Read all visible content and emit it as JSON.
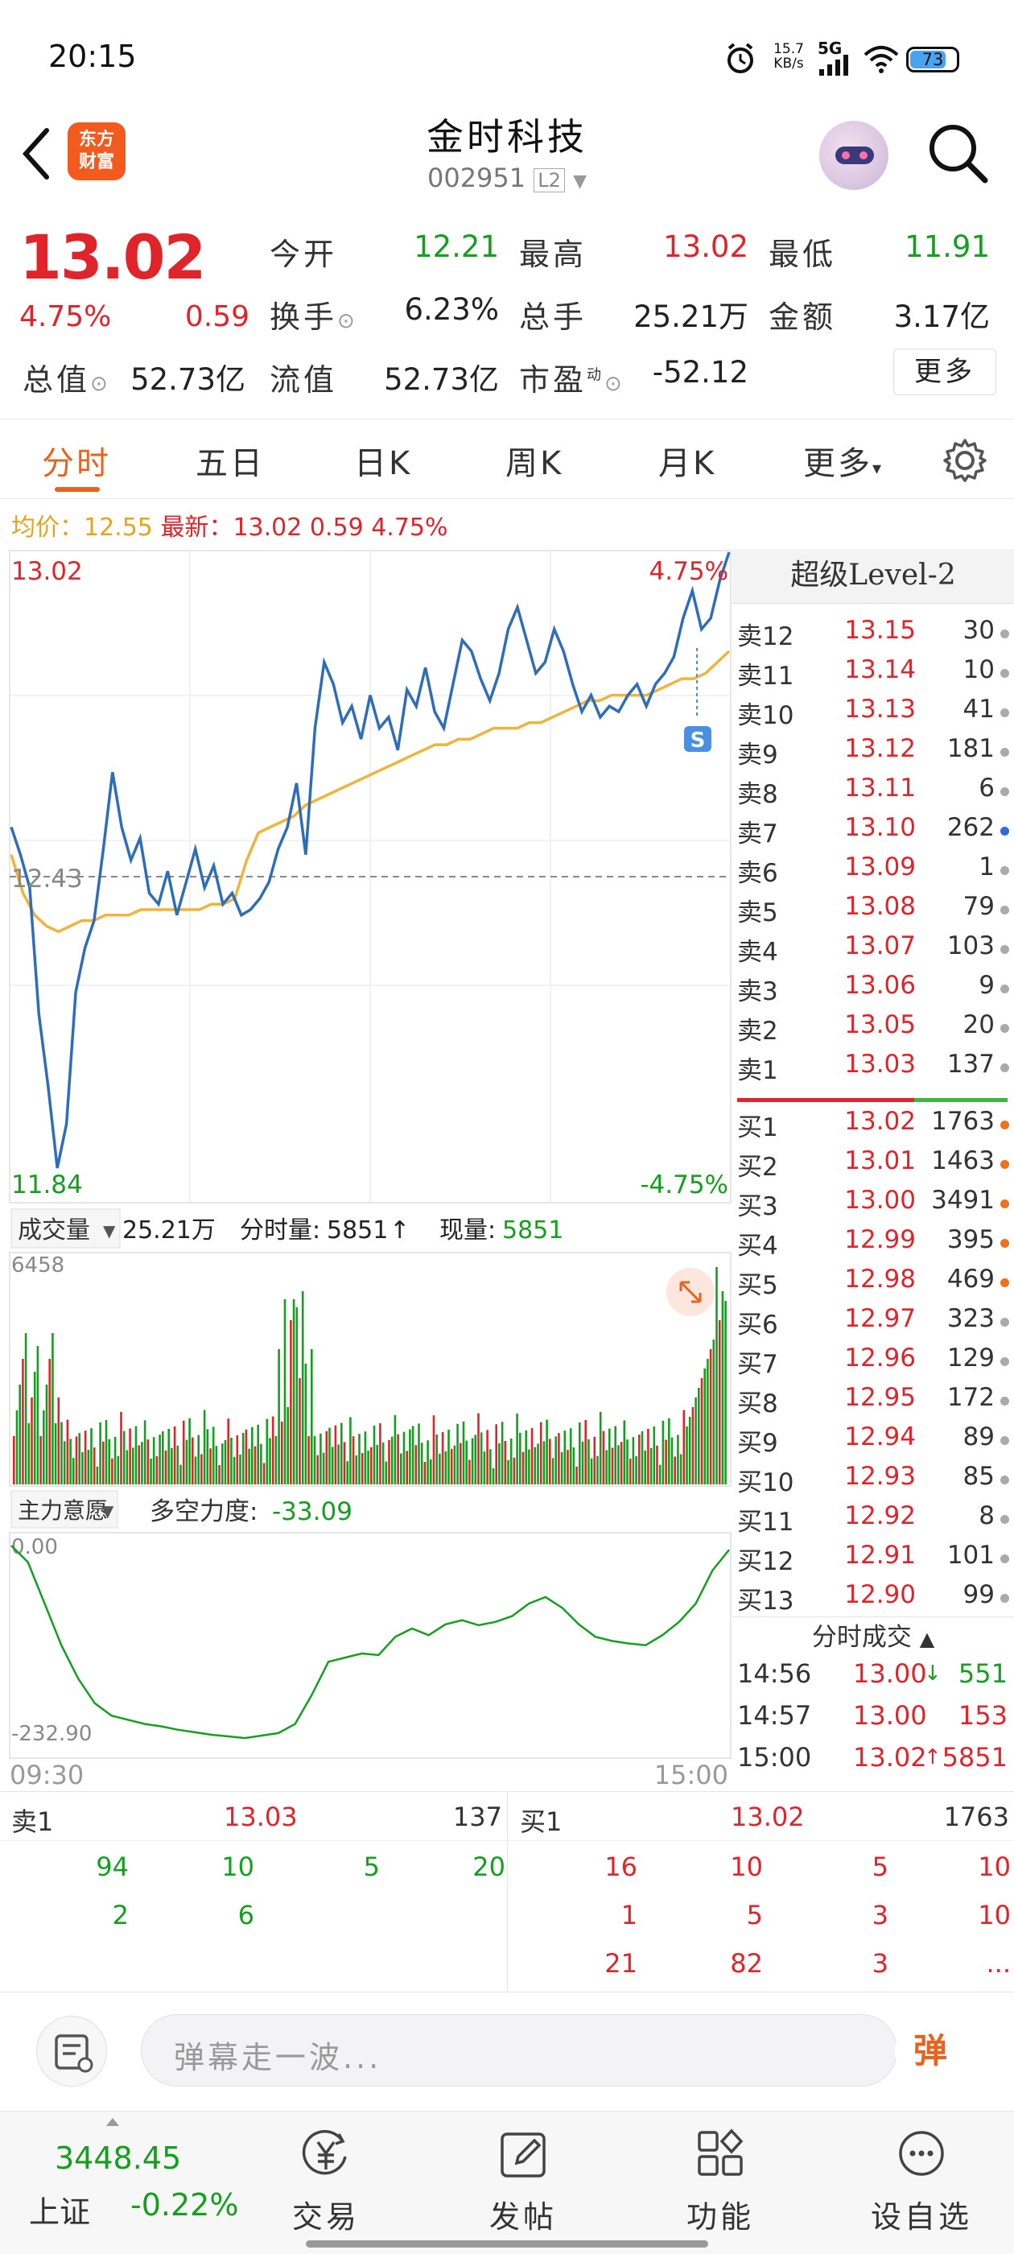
{
  "status_bar": {
    "time": "20:15",
    "net_speed": "15.7",
    "net_unit": "KB/s",
    "network": "5G",
    "battery": "73"
  },
  "header": {
    "title": "金时科技",
    "code": "002951",
    "level_tag": "L2",
    "logo_text_1": "东方",
    "logo_text_2": "财富"
  },
  "quote": {
    "price": "13.02",
    "pct": "4.75%",
    "change": "0.59",
    "open_label": "今开",
    "open": "12.21",
    "high_label": "最高",
    "high": "13.02",
    "low_label": "最低",
    "low": "11.91",
    "turnover_label": "换手",
    "turnover": "6.23%",
    "volume_label": "总手",
    "volume": "25.21万",
    "amount_label": "金额",
    "amount": "3.17亿",
    "mcap_label": "总值",
    "mcap": "52.73亿",
    "float_label": "流值",
    "float": "52.73亿",
    "pe_label": "市盈",
    "pe_sup": "动",
    "pe": "-52.12",
    "more_button": "更多"
  },
  "tabs": [
    {
      "label": "分时",
      "active": true
    },
    {
      "label": "五日"
    },
    {
      "label": "日K"
    },
    {
      "label": "周K"
    },
    {
      "label": "月K"
    },
    {
      "label": "更多"
    }
  ],
  "avg_bar": {
    "avg_label": "均价：",
    "avg": "12.55",
    "latest_label": "最新：",
    "latest": "13.02",
    "change": "0.59",
    "pct": "4.75%"
  },
  "price_chart": {
    "y_top": "13.02",
    "y_mid": "12.43",
    "y_bottom": "11.84",
    "pct_top": "4.75%",
    "pct_bottom": "-4.75%",
    "price_series": [
      12.52,
      12.47,
      12.41,
      12.18,
      12.05,
      11.9,
      11.98,
      12.22,
      12.3,
      12.35,
      12.48,
      12.62,
      12.52,
      12.46,
      12.5,
      12.4,
      12.38,
      12.44,
      12.36,
      12.42,
      12.48,
      12.41,
      12.45,
      12.38,
      12.4,
      12.36,
      12.37,
      12.39,
      12.42,
      12.48,
      12.52,
      12.6,
      12.47,
      12.7,
      12.82,
      12.78,
      12.71,
      12.74,
      12.68,
      12.76,
      12.7,
      12.72,
      12.66,
      12.77,
      12.74,
      12.81,
      12.73,
      12.7,
      12.78,
      12.86,
      12.84,
      12.79,
      12.75,
      12.8,
      12.88,
      12.92,
      12.86,
      12.8,
      12.82,
      12.88,
      12.84,
      12.78,
      12.73,
      12.76,
      12.72,
      12.74,
      12.73,
      12.76,
      12.78,
      12.74,
      12.78,
      12.8,
      12.83,
      12.9,
      12.95,
      12.88,
      12.9,
      12.97,
      13.02
    ],
    "avg_series": [
      12.47,
      12.4,
      12.36,
      12.34,
      12.33,
      12.34,
      12.35,
      12.35,
      12.36,
      12.36,
      12.36,
      12.37,
      12.37,
      12.37,
      12.37,
      12.37,
      12.37,
      12.38,
      12.38,
      12.39,
      12.46,
      12.51,
      12.52,
      12.53,
      12.54,
      12.56,
      12.57,
      12.58,
      12.59,
      12.6,
      12.61,
      12.62,
      12.63,
      12.64,
      12.65,
      12.66,
      12.67,
      12.67,
      12.68,
      12.68,
      12.69,
      12.7,
      12.7,
      12.7,
      12.71,
      12.71,
      12.72,
      12.73,
      12.74,
      12.75,
      12.75,
      12.76,
      12.76,
      12.76,
      12.76,
      12.77,
      12.78,
      12.79,
      12.79,
      12.8,
      12.82,
      12.84
    ]
  },
  "volume_bar": {
    "label": "成交量",
    "total": "25.21万",
    "minute_label": "分时量:",
    "minute": "5851",
    "now_label": "现量:",
    "now": "5851",
    "max": "6458"
  },
  "indicator_bar": {
    "label": "主力意愿",
    "name": "多空力度:",
    "value": "-33.09",
    "y_top": "0.00",
    "y_bottom": "-232.90",
    "time_start": "09:30",
    "time_end": "15:00"
  },
  "orderbook": {
    "title": "超级Level-2",
    "asks": [
      {
        "side": "卖12",
        "price": "13.15",
        "vol": "30",
        "dot": "#aaaaaa"
      },
      {
        "side": "卖11",
        "price": "13.14",
        "vol": "10",
        "dot": "#aaaaaa"
      },
      {
        "side": "卖10",
        "price": "13.13",
        "vol": "41",
        "dot": "#aaaaaa"
      },
      {
        "side": "卖9",
        "price": "13.12",
        "vol": "181",
        "dot": "#aaaaaa"
      },
      {
        "side": "卖8",
        "price": "13.11",
        "vol": "6",
        "dot": "#aaaaaa"
      },
      {
        "side": "卖7",
        "price": "13.10",
        "vol": "262",
        "dot": "#2a6fd6"
      },
      {
        "side": "卖6",
        "price": "13.09",
        "vol": "1",
        "dot": "#aaaaaa"
      },
      {
        "side": "卖5",
        "price": "13.08",
        "vol": "79",
        "dot": "#aaaaaa"
      },
      {
        "side": "卖4",
        "price": "13.07",
        "vol": "103",
        "dot": "#aaaaaa"
      },
      {
        "side": "卖3",
        "price": "13.06",
        "vol": "9",
        "dot": "#aaaaaa"
      },
      {
        "side": "卖2",
        "price": "13.05",
        "vol": "20",
        "dot": "#aaaaaa"
      },
      {
        "side": "卖1",
        "price": "13.03",
        "vol": "137",
        "dot": "#aaaaaa"
      }
    ],
    "bids": [
      {
        "side": "买1",
        "price": "13.02",
        "vol": "1763",
        "dot": "#f0701e"
      },
      {
        "side": "买2",
        "price": "13.01",
        "vol": "1463",
        "dot": "#f0701e"
      },
      {
        "side": "买3",
        "price": "13.00",
        "vol": "3491",
        "dot": "#f0701e"
      },
      {
        "side": "买4",
        "price": "12.99",
        "vol": "395",
        "dot": "#f0701e"
      },
      {
        "side": "买5",
        "price": "12.98",
        "vol": "469",
        "dot": "#f0701e"
      },
      {
        "side": "买6",
        "price": "12.97",
        "vol": "323",
        "dot": "#aaaaaa"
      },
      {
        "side": "买7",
        "price": "12.96",
        "vol": "129",
        "dot": "#aaaaaa"
      },
      {
        "side": "买8",
        "price": "12.95",
        "vol": "172",
        "dot": "#aaaaaa"
      },
      {
        "side": "买9",
        "price": "12.94",
        "vol": "89",
        "dot": "#aaaaaa"
      },
      {
        "side": "买10",
        "price": "12.93",
        "vol": "85",
        "dot": "#aaaaaa"
      },
      {
        "side": "买11",
        "price": "12.92",
        "vol": "8",
        "dot": "#aaaaaa"
      },
      {
        "side": "买12",
        "price": "12.91",
        "vol": "101",
        "dot": "#aaaaaa"
      },
      {
        "side": "买13",
        "price": "12.90",
        "vol": "99",
        "dot": "#aaaaaa"
      }
    ],
    "trades_title": "分时成交",
    "trades": [
      {
        "time": "14:56",
        "price": "13.00",
        "arrow": "↓",
        "vol": "551"
      },
      {
        "time": "14:57",
        "price": "13.00",
        "arrow": "",
        "vol": "153"
      },
      {
        "time": "15:00",
        "price": "13.02",
        "arrow": "↑",
        "vol": "5851"
      }
    ]
  },
  "tick_table": {
    "sell_label": "卖1",
    "sell_price": "13.03",
    "sell_vol": "137",
    "buy_label": "买1",
    "buy_price": "13.02",
    "buy_vol": "1763",
    "sell_rows": [
      [
        "94",
        "10",
        "5",
        "20"
      ],
      [
        "2",
        "6",
        "",
        ""
      ]
    ],
    "buy_rows": [
      [
        "16",
        "10",
        "5",
        "10"
      ],
      [
        "1",
        "5",
        "3",
        "10"
      ],
      [
        "21",
        "82",
        "3",
        "..."
      ]
    ]
  },
  "comment_bar": {
    "placeholder": "弹幕走一波...",
    "danmu_button": "弹"
  },
  "bottom_nav": {
    "index_value": "3448.45",
    "index_name": "上证",
    "index_pct": "-0.22%",
    "items": [
      {
        "label": "交易"
      },
      {
        "label": "发帖"
      },
      {
        "label": "功能"
      },
      {
        "label": "设自选"
      }
    ]
  },
  "colors": {
    "up": "#e0242b",
    "down": "#14a01e",
    "accent": "#f0701e",
    "price_line": "#2e6db8",
    "avg_line": "#f0b43c"
  }
}
